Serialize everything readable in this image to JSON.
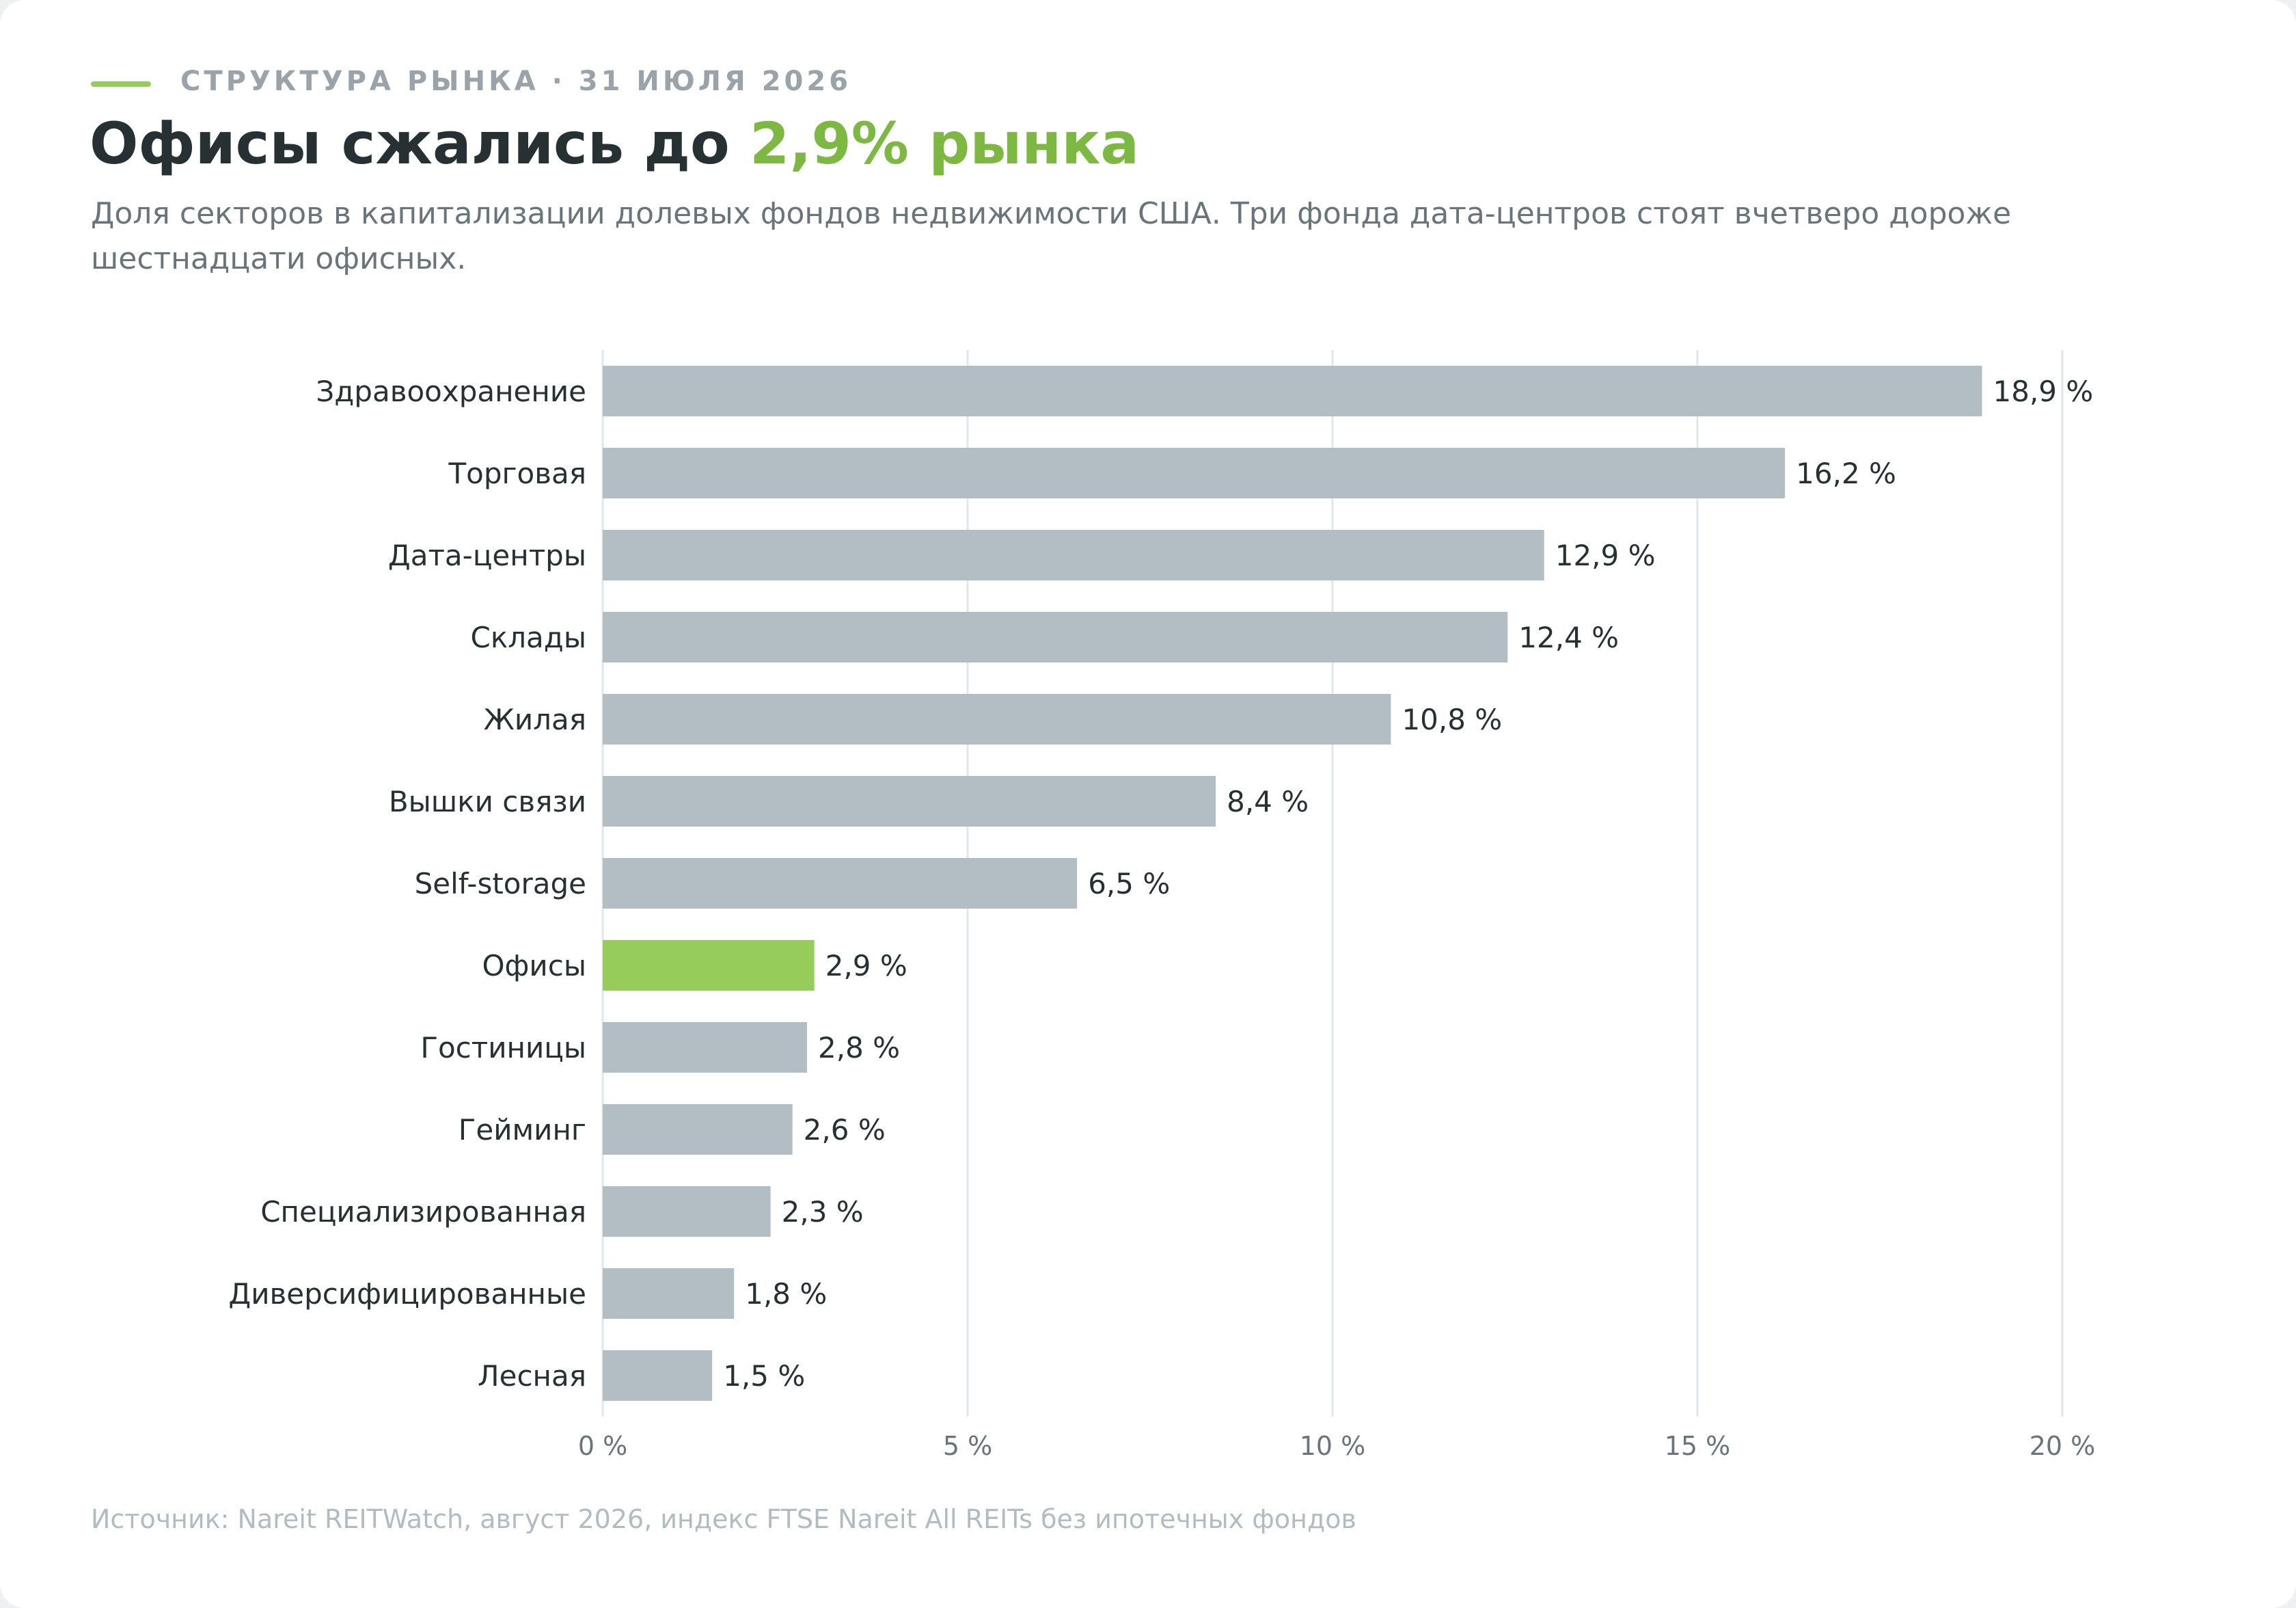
{
  "header": {
    "eyebrow": "СТРУКТУРА РЫНКА · 31 ИЮЛЯ 2026",
    "title_main": "Офисы сжались до ",
    "title_accent": "2,9% рынка",
    "subtitle": "Доля секторов в капитализации долевых фондов недвижимости США. Три фонда дата-центров стоят вчетверо дороже шестнадцати офисных."
  },
  "colors": {
    "accent": "#7db843",
    "accent_bar": "#96cd5a",
    "bar": "#b3bdc4",
    "grid": "#e3e6e8",
    "text": "#273133"
  },
  "chart_data": {
    "type": "bar",
    "orientation": "horizontal",
    "categories": [
      "Здравоохранение",
      "Торговая",
      "Дата-центры",
      "Склады",
      "Жилая",
      "Вышки связи",
      "Self-storage",
      "Офисы",
      "Гостиницы",
      "Гейминг",
      "Специализированная",
      "Диверсифицированные",
      "Лесная"
    ],
    "values": [
      18.9,
      16.2,
      12.9,
      12.4,
      10.8,
      8.4,
      6.5,
      2.9,
      2.8,
      2.6,
      2.3,
      1.8,
      1.5
    ],
    "value_labels": [
      "18,9 %",
      "16,2 %",
      "12,9 %",
      "12,4 %",
      "10,8 %",
      "8,4 %",
      "6,5 %",
      "2,9 %",
      "2,8 %",
      "2,6 %",
      "2,3 %",
      "1,8 %",
      "1,5 %"
    ],
    "highlight": "Офисы",
    "xlim": [
      0,
      20
    ],
    "x_ticks": [
      0,
      5,
      10,
      15,
      20
    ],
    "x_tick_labels": [
      "0 %",
      "5 %",
      "10 %",
      "15 %",
      "20 %"
    ],
    "grid": true,
    "xlabel": "",
    "ylabel": ""
  },
  "footer": {
    "source": "Источник: Nareit REITWatch, август 2026, индекс FTSE Nareit All REITs без ипотечных фондов"
  }
}
